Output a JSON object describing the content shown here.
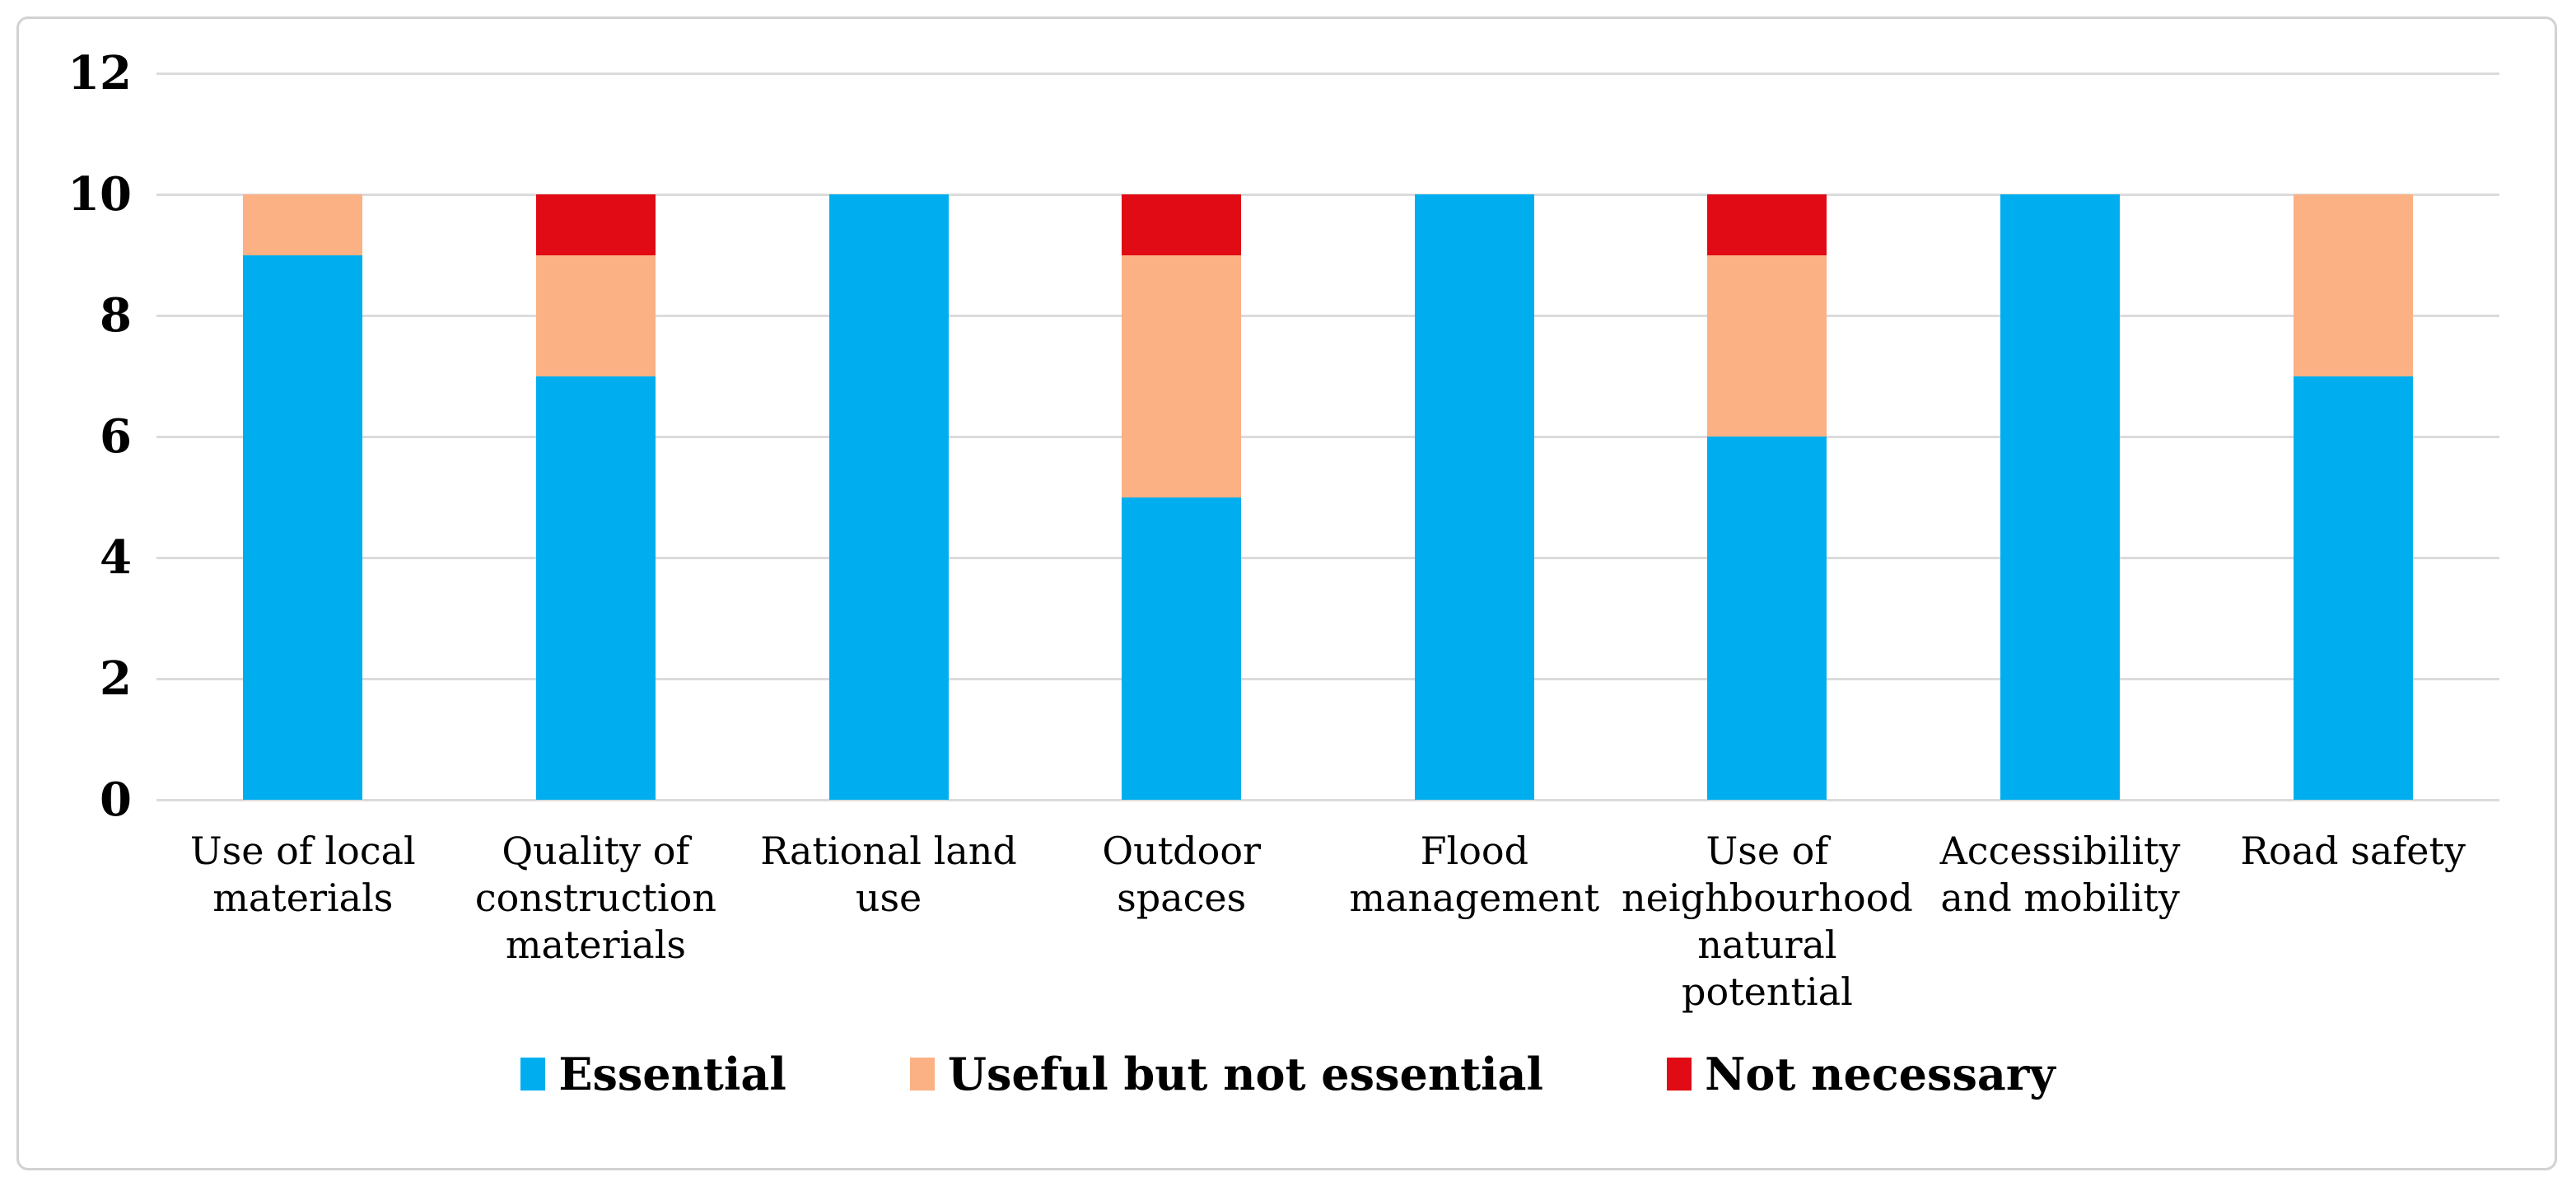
{
  "chart_data": {
    "type": "bar",
    "stacked": true,
    "title": "",
    "xlabel": "",
    "ylabel": "",
    "categories": [
      "Use of local materials",
      "Quality of construction materials",
      "Rational land use",
      "Outdoor spaces",
      "Flood management",
      "Use of neighbourhood natural potential",
      "Accessibility and mobility",
      "Road safety"
    ],
    "category_lines": [
      [
        "Use of local",
        "materials"
      ],
      [
        "Quality of",
        "construction",
        "materials"
      ],
      [
        "Rational land",
        "use"
      ],
      [
        "Outdoor",
        "spaces"
      ],
      [
        "Flood",
        "management"
      ],
      [
        "Use of",
        "neighbourhood",
        "natural",
        "potential"
      ],
      [
        "Accessibility",
        "and mobility"
      ],
      [
        "Road safety"
      ]
    ],
    "series": [
      {
        "name": "Essential",
        "color": "#00AEEF",
        "values": [
          9,
          7,
          10,
          5,
          10,
          6,
          10,
          7
        ]
      },
      {
        "name": "Useful but not essential",
        "color": "#FBB184",
        "values": [
          1,
          2,
          0,
          4,
          0,
          3,
          0,
          3
        ]
      },
      {
        "name": "Not necessary",
        "color": "#E00B14",
        "values": [
          0,
          1,
          0,
          1,
          0,
          1,
          0,
          0
        ]
      }
    ],
    "ylim": [
      0,
      12
    ],
    "yticks": [
      "0",
      "2",
      "4",
      "6",
      "8",
      "10",
      "12"
    ],
    "grid": true,
    "gridline_color": "#DBDBDB",
    "frame_border_color": "#D2D2D2",
    "legend_position": "bottom-center"
  }
}
